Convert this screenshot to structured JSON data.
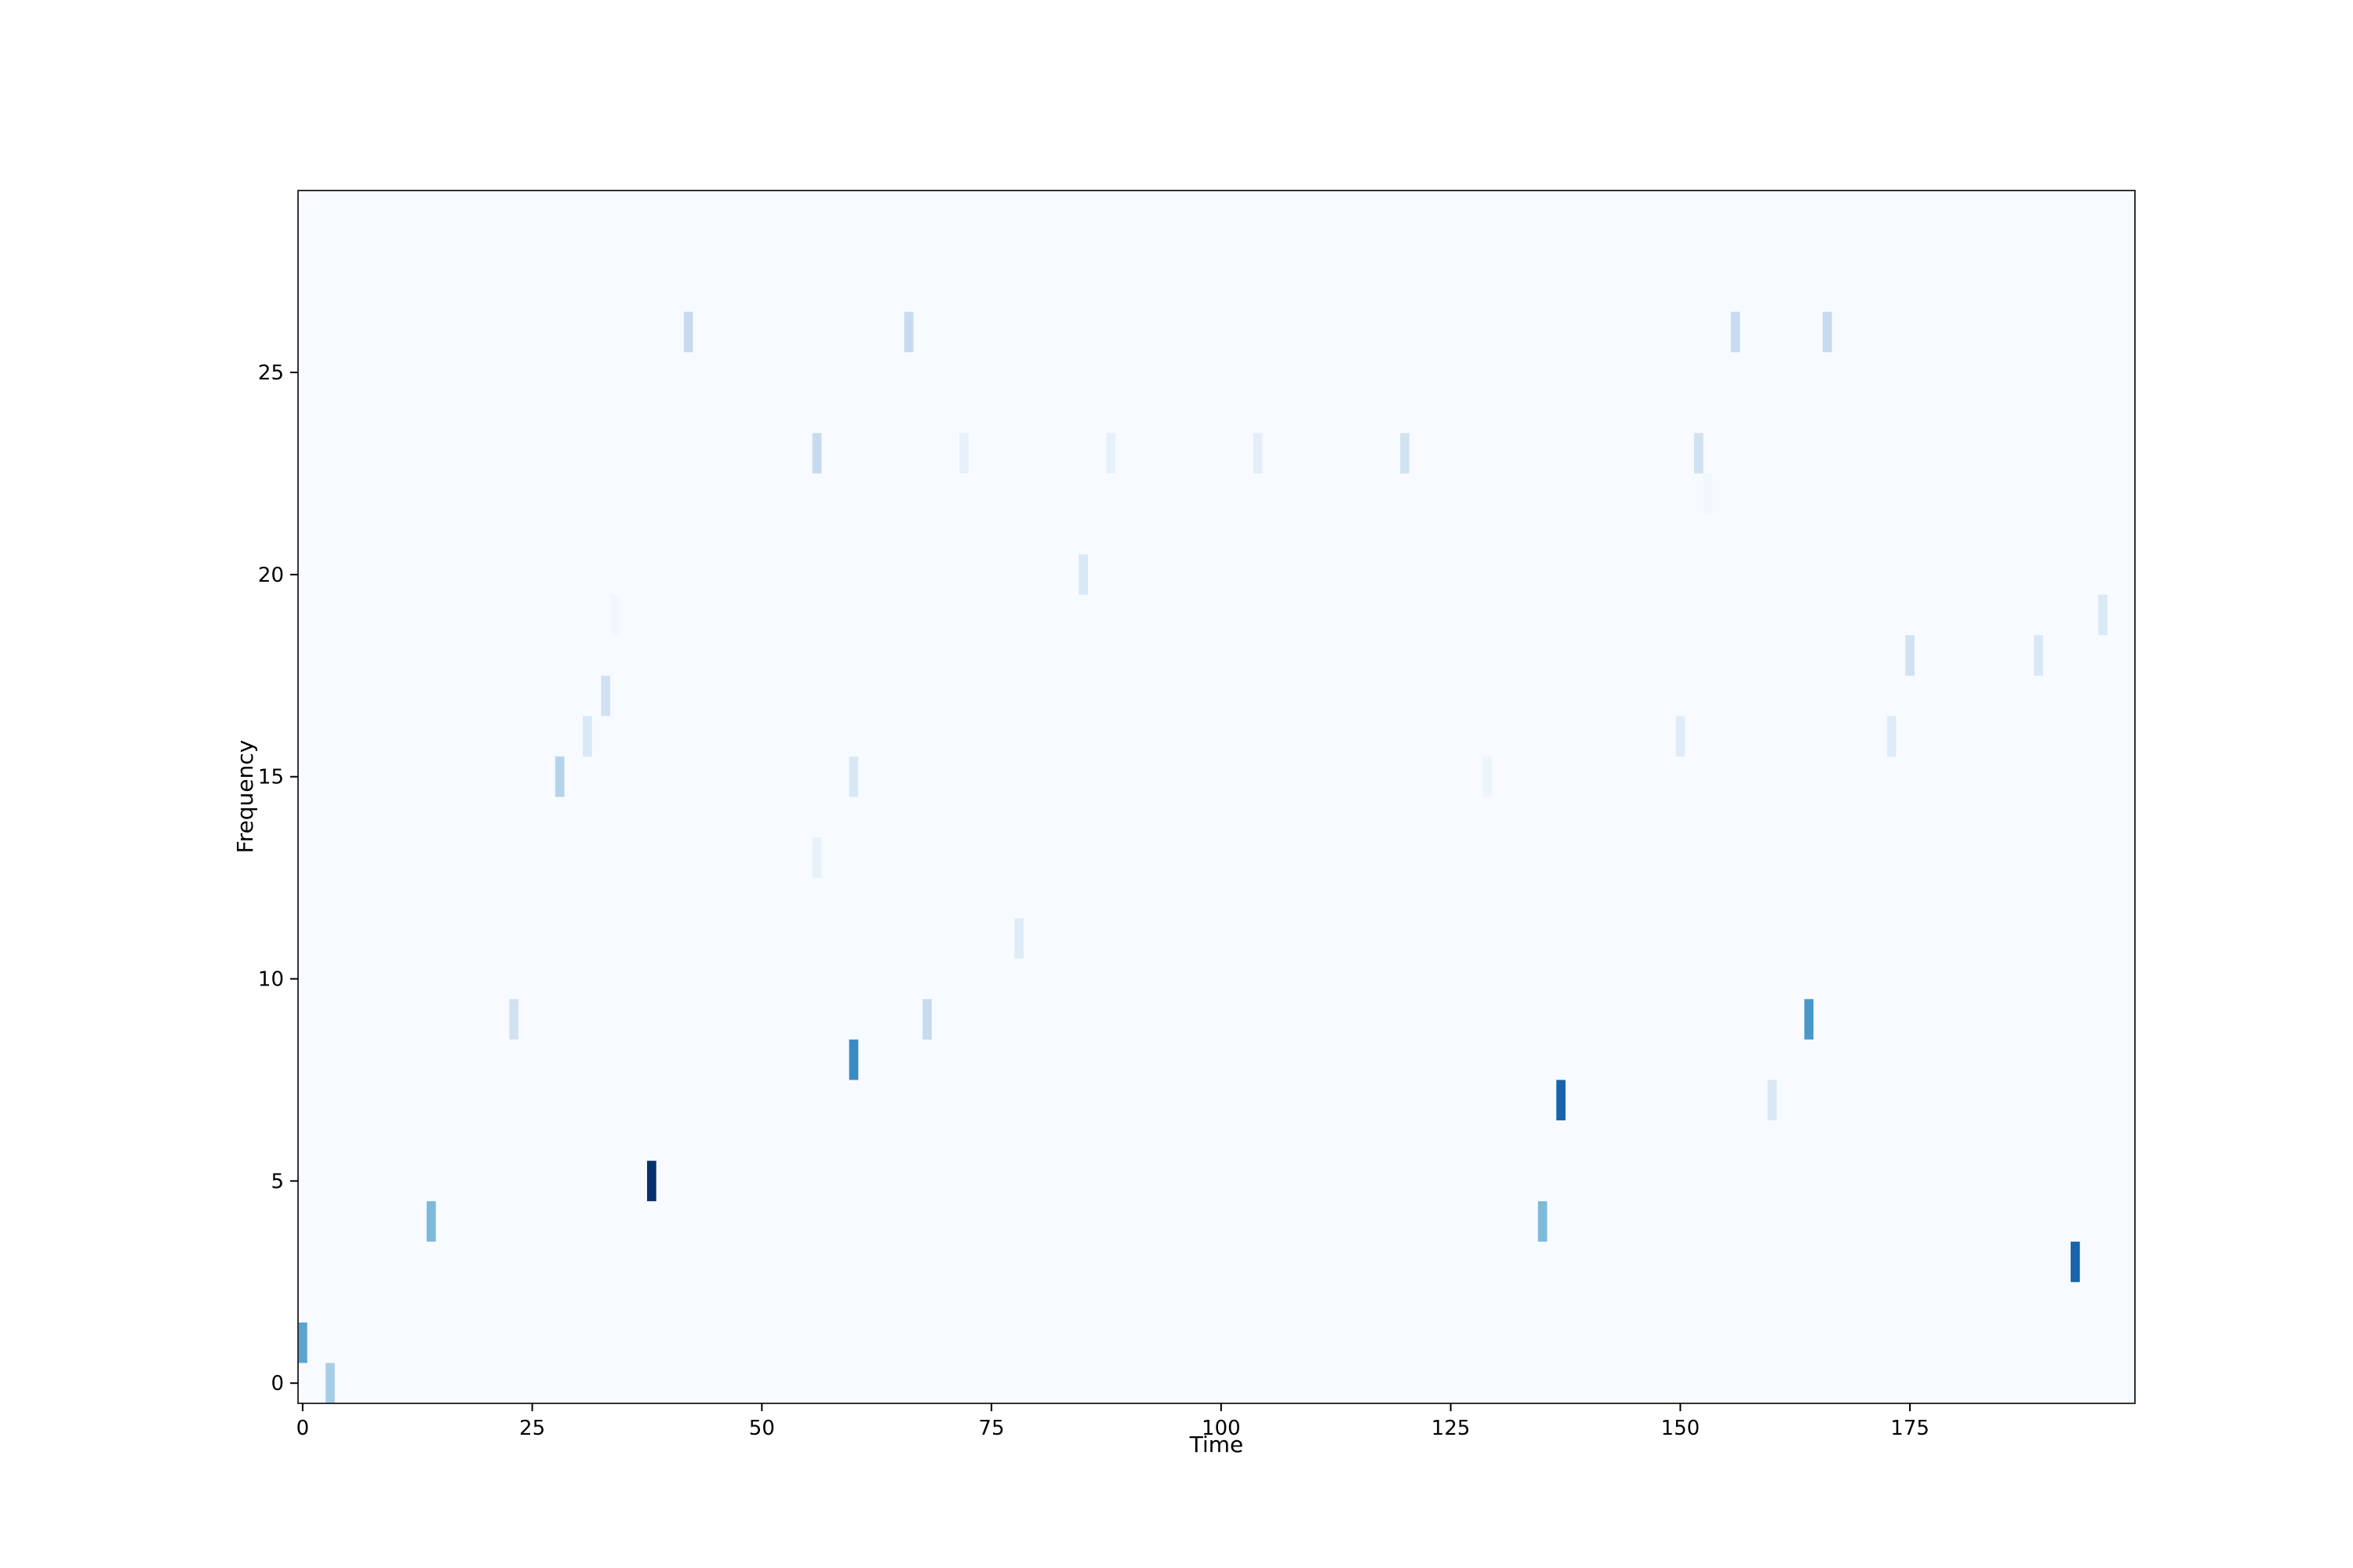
{
  "chart_data": {
    "type": "heatmap",
    "title": "",
    "xlabel": "Time",
    "ylabel": "Frequency",
    "xlim": [
      -0.5,
      199.5
    ],
    "ylim": [
      -0.5,
      29.5
    ],
    "x_ticks": [
      0,
      25,
      50,
      75,
      100,
      125,
      150,
      175
    ],
    "y_ticks": [
      0,
      5,
      10,
      15,
      20,
      25
    ],
    "x_tick_labels": [
      "0",
      "25",
      "50",
      "75",
      "100",
      "125",
      "150",
      "175"
    ],
    "y_tick_labels": [
      "0",
      "5",
      "10",
      "15",
      "20",
      "25"
    ],
    "colormap": "Blues",
    "grid": false,
    "background_value": 0,
    "value_range": [
      0,
      1
    ],
    "cells": [
      {
        "time": 0,
        "freq": 1,
        "value": 0.55
      },
      {
        "time": 3,
        "freq": 0,
        "value": 0.35
      },
      {
        "time": 14,
        "freq": 4,
        "value": 0.45
      },
      {
        "time": 23,
        "freq": 9,
        "value": 0.2
      },
      {
        "time": 28,
        "freq": 15,
        "value": 0.3
      },
      {
        "time": 31,
        "freq": 16,
        "value": 0.15
      },
      {
        "time": 33,
        "freq": 17,
        "value": 0.2
      },
      {
        "time": 34,
        "freq": 19,
        "value": 0.03
      },
      {
        "time": 38,
        "freq": 5,
        "value": 1.0
      },
      {
        "time": 42,
        "freq": 26,
        "value": 0.25
      },
      {
        "time": 56,
        "freq": 23,
        "value": 0.25
      },
      {
        "time": 56,
        "freq": 13,
        "value": 0.08
      },
      {
        "time": 60,
        "freq": 15,
        "value": 0.15
      },
      {
        "time": 60,
        "freq": 8,
        "value": 0.65
      },
      {
        "time": 66,
        "freq": 26,
        "value": 0.25
      },
      {
        "time": 68,
        "freq": 9,
        "value": 0.25
      },
      {
        "time": 72,
        "freq": 23,
        "value": 0.08
      },
      {
        "time": 78,
        "freq": 11,
        "value": 0.12
      },
      {
        "time": 85,
        "freq": 20,
        "value": 0.15
      },
      {
        "time": 88,
        "freq": 23,
        "value": 0.08
      },
      {
        "time": 104,
        "freq": 23,
        "value": 0.1
      },
      {
        "time": 120,
        "freq": 23,
        "value": 0.2
      },
      {
        "time": 129,
        "freq": 15,
        "value": 0.05
      },
      {
        "time": 135,
        "freq": 4,
        "value": 0.45
      },
      {
        "time": 137,
        "freq": 7,
        "value": 0.8
      },
      {
        "time": 150,
        "freq": 16,
        "value": 0.12
      },
      {
        "time": 152,
        "freq": 23,
        "value": 0.2
      },
      {
        "time": 153,
        "freq": 22,
        "value": 0.03
      },
      {
        "time": 156,
        "freq": 26,
        "value": 0.25
      },
      {
        "time": 160,
        "freq": 7,
        "value": 0.15
      },
      {
        "time": 164,
        "freq": 9,
        "value": 0.6
      },
      {
        "time": 166,
        "freq": 26,
        "value": 0.25
      },
      {
        "time": 173,
        "freq": 16,
        "value": 0.12
      },
      {
        "time": 175,
        "freq": 18,
        "value": 0.2
      },
      {
        "time": 189,
        "freq": 18,
        "value": 0.15
      },
      {
        "time": 193,
        "freq": 3,
        "value": 0.8
      },
      {
        "time": 196,
        "freq": 19,
        "value": 0.15
      }
    ]
  }
}
